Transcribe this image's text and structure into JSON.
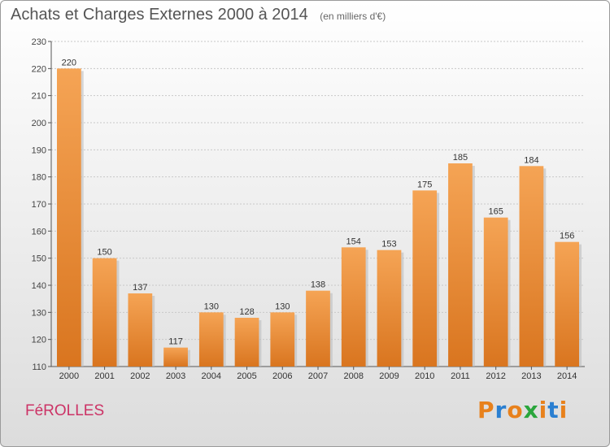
{
  "chart_data": {
    "type": "bar",
    "title": "Achats et Charges Externes 2000 à 2014",
    "subtitle": "(en milliers d'€)",
    "categories": [
      "2000",
      "2001",
      "2002",
      "2003",
      "2004",
      "2005",
      "2006",
      "2007",
      "2008",
      "2009",
      "2010",
      "2011",
      "2012",
      "2013",
      "2014"
    ],
    "values": [
      220,
      150,
      137,
      117,
      130,
      128,
      130,
      138,
      154,
      153,
      175,
      185,
      165,
      184,
      156
    ],
    "ylim": [
      110,
      230
    ],
    "yticks": [
      110,
      120,
      130,
      140,
      150,
      160,
      170,
      180,
      190,
      200,
      210,
      220,
      230
    ],
    "grid": true,
    "bar_color_top": "#f5a455",
    "bar_color_bottom": "#d9751f"
  },
  "footer": {
    "commune": "FéROLLES",
    "logo_text": "Proxiti"
  },
  "colors": {
    "commune": "#cc3366",
    "logo": [
      "#e8811c",
      "#2a7fd1",
      "#e8811c",
      "#2aa63c",
      "#e8811c",
      "#2a7fd1",
      "#e8811c"
    ]
  }
}
